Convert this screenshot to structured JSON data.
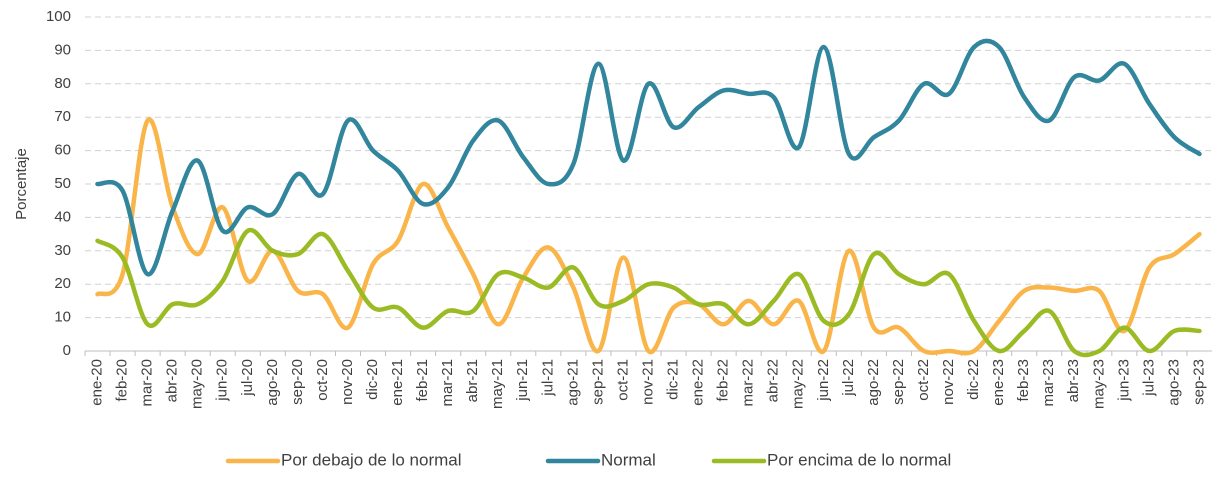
{
  "chart_data": {
    "type": "line",
    "ylabel": "Porcentaje",
    "categories": [
      "ene-20",
      "feb-20",
      "mar-20",
      "abr-20",
      "may-20",
      "jun-20",
      "jul-20",
      "ago-20",
      "sep-20",
      "oct-20",
      "nov-20",
      "dic-20",
      "ene-21",
      "feb-21",
      "mar-21",
      "abr-21",
      "may-21",
      "jun-21",
      "jul-21",
      "ago-21",
      "sep-21",
      "oct-21",
      "nov-21",
      "dic-21",
      "ene-22",
      "feb-22",
      "mar-22",
      "abr-22",
      "may-22",
      "jun-22",
      "jul-22",
      "ago-22",
      "sep-22",
      "oct-22",
      "nov-22",
      "dic-22",
      "ene-23",
      "feb-23",
      "mar-23",
      "abr-23",
      "may-23",
      "jun-23",
      "jul-23",
      "ago-23",
      "sep-23"
    ],
    "series": [
      {
        "name": "Por debajo de lo normal",
        "color": "#fab54a",
        "values": [
          17,
          23,
          69,
          43,
          29,
          43,
          21,
          30,
          18,
          17,
          7,
          26,
          33,
          50,
          37,
          23,
          8,
          22,
          31,
          19,
          0,
          28,
          0,
          13,
          14,
          8,
          15,
          8,
          15,
          0,
          30,
          7,
          7,
          0,
          0,
          0,
          9,
          18,
          19,
          18,
          18,
          6,
          25,
          29,
          35
        ]
      },
      {
        "name": "Normal",
        "color": "#31859c",
        "values": [
          50,
          48,
          23,
          42,
          57,
          36,
          43,
          41,
          53,
          47,
          69,
          60,
          54,
          44,
          49,
          63,
          69,
          58,
          50,
          56,
          86,
          57,
          80,
          67,
          73,
          78,
          77,
          76,
          61,
          91,
          59,
          64,
          69,
          80,
          77,
          91,
          91,
          76,
          69,
          82,
          81,
          86,
          74,
          64,
          59
        ]
      },
      {
        "name": "Por encima de lo normal",
        "color": "#9bbb24",
        "values": [
          33,
          28,
          8,
          14,
          14,
          21,
          36,
          30,
          29,
          35,
          24,
          13,
          13,
          7,
          12,
          12,
          23,
          22,
          19,
          25,
          14,
          15,
          20,
          19,
          14,
          14,
          8,
          15,
          23,
          9,
          11,
          29,
          23,
          20,
          23,
          9,
          0,
          6,
          12,
          0,
          0,
          7,
          0,
          6,
          6
        ]
      }
    ],
    "ylim": [
      0,
      100
    ],
    "yticks": [
      0,
      10,
      20,
      30,
      40,
      50,
      60,
      70,
      80,
      90,
      100
    ],
    "grid": true,
    "legend": "bottom"
  }
}
